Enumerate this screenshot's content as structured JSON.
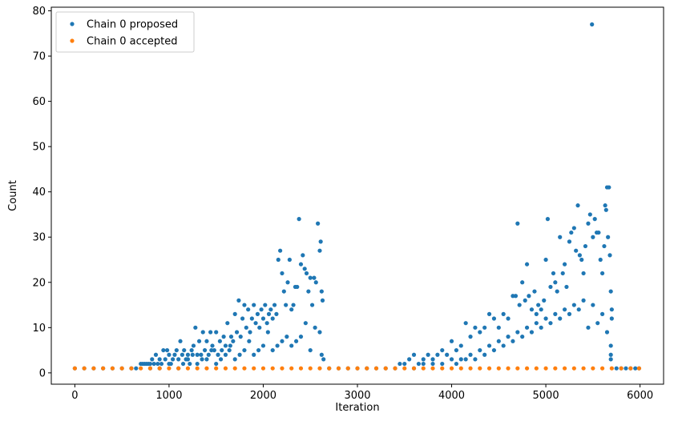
{
  "chart_data": {
    "type": "scatter",
    "title": "",
    "xlabel": "Iteration",
    "ylabel": "Count",
    "xlim": [
      -250,
      6250
    ],
    "ylim": [
      -2.5,
      80.8
    ],
    "xticks": [
      0,
      1000,
      2000,
      3000,
      4000,
      5000,
      6000
    ],
    "yticks": [
      0,
      10,
      20,
      30,
      40,
      50,
      60,
      70,
      80
    ],
    "grid": false,
    "legend_position": "top-left",
    "series": [
      {
        "name": "Chain 0 proposed",
        "color": "#1f77b4",
        "marker": "circle",
        "points": [
          [
            0,
            1
          ],
          [
            100,
            1
          ],
          [
            200,
            1
          ],
          [
            300,
            1
          ],
          [
            400,
            1
          ],
          [
            500,
            1
          ],
          [
            600,
            1
          ],
          [
            650,
            1
          ],
          [
            700,
            2
          ],
          [
            720,
            2
          ],
          [
            740,
            2
          ],
          [
            760,
            2
          ],
          [
            780,
            2
          ],
          [
            800,
            2
          ],
          [
            820,
            3
          ],
          [
            840,
            2
          ],
          [
            860,
            4
          ],
          [
            880,
            2
          ],
          [
            900,
            3
          ],
          [
            920,
            2
          ],
          [
            940,
            5
          ],
          [
            960,
            3
          ],
          [
            980,
            5
          ],
          [
            1000,
            4
          ],
          [
            1020,
            2
          ],
          [
            1040,
            3
          ],
          [
            1060,
            4
          ],
          [
            1080,
            5
          ],
          [
            1100,
            3
          ],
          [
            1120,
            7
          ],
          [
            1140,
            4
          ],
          [
            1160,
            5
          ],
          [
            1180,
            3
          ],
          [
            1200,
            4
          ],
          [
            1220,
            2
          ],
          [
            1240,
            5
          ],
          [
            1260,
            6
          ],
          [
            1280,
            10
          ],
          [
            1300,
            4
          ],
          [
            1320,
            7
          ],
          [
            1340,
            4
          ],
          [
            1360,
            9
          ],
          [
            1380,
            5
          ],
          [
            1400,
            7
          ],
          [
            1420,
            4
          ],
          [
            1440,
            9
          ],
          [
            1460,
            6
          ],
          [
            1480,
            5
          ],
          [
            1500,
            9
          ],
          [
            1520,
            4
          ],
          [
            1540,
            7
          ],
          [
            1560,
            5
          ],
          [
            1580,
            8
          ],
          [
            1600,
            6
          ],
          [
            1620,
            11
          ],
          [
            1640,
            5
          ],
          [
            1660,
            8
          ],
          [
            1680,
            7
          ],
          [
            1700,
            13
          ],
          [
            1720,
            9
          ],
          [
            1740,
            16
          ],
          [
            1760,
            8
          ],
          [
            1780,
            12
          ],
          [
            1800,
            15
          ],
          [
            1820,
            10
          ],
          [
            1840,
            14
          ],
          [
            1860,
            9
          ],
          [
            1880,
            12
          ],
          [
            1900,
            15
          ],
          [
            1920,
            11
          ],
          [
            1940,
            13
          ],
          [
            1960,
            10
          ],
          [
            1980,
            14
          ],
          [
            2000,
            12
          ],
          [
            2020,
            15
          ],
          [
            2040,
            11
          ],
          [
            2060,
            13
          ],
          [
            2080,
            14
          ],
          [
            2100,
            12
          ],
          [
            2120,
            15
          ],
          [
            2140,
            13
          ],
          [
            2160,
            25
          ],
          [
            2180,
            27
          ],
          [
            2200,
            22
          ],
          [
            2220,
            18
          ],
          [
            2240,
            15
          ],
          [
            2260,
            20
          ],
          [
            2280,
            25
          ],
          [
            2300,
            14
          ],
          [
            2320,
            15
          ],
          [
            2340,
            19
          ],
          [
            2360,
            19
          ],
          [
            2380,
            34
          ],
          [
            2400,
            24
          ],
          [
            2420,
            26
          ],
          [
            2440,
            23
          ],
          [
            2460,
            22
          ],
          [
            2480,
            18
          ],
          [
            2500,
            21
          ],
          [
            2520,
            15
          ],
          [
            2540,
            21
          ],
          [
            2560,
            20
          ],
          [
            2580,
            33
          ],
          [
            2600,
            27
          ],
          [
            2610,
            29
          ],
          [
            2620,
            18
          ],
          [
            2630,
            16
          ],
          [
            2640,
            3
          ],
          [
            800,
            1
          ],
          [
            1000,
            2
          ],
          [
            1200,
            3
          ],
          [
            1400,
            3
          ],
          [
            1600,
            4
          ],
          [
            1800,
            5
          ],
          [
            2000,
            6
          ],
          [
            2200,
            7
          ],
          [
            2400,
            8
          ],
          [
            2600,
            9
          ],
          [
            1100,
            1
          ],
          [
            1300,
            2
          ],
          [
            1500,
            2
          ],
          [
            1700,
            3
          ],
          [
            1900,
            4
          ],
          [
            2100,
            5
          ],
          [
            2300,
            6
          ],
          [
            2500,
            5
          ],
          [
            2620,
            4
          ],
          [
            900,
            1
          ],
          [
            1150,
            2
          ],
          [
            1350,
            3
          ],
          [
            1550,
            3
          ],
          [
            1750,
            4
          ],
          [
            1950,
            5
          ],
          [
            2150,
            6
          ],
          [
            2350,
            7
          ],
          [
            2550,
            10
          ],
          [
            2450,
            11
          ],
          [
            2250,
            8
          ],
          [
            2050,
            9
          ],
          [
            1850,
            7
          ],
          [
            1650,
            6
          ],
          [
            1450,
            5
          ],
          [
            1250,
            4
          ],
          [
            2700,
            1
          ],
          [
            2800,
            1
          ],
          [
            2900,
            1
          ],
          [
            3000,
            1
          ],
          [
            3100,
            1
          ],
          [
            3200,
            1
          ],
          [
            3300,
            1
          ],
          [
            3400,
            1
          ],
          [
            3450,
            2
          ],
          [
            3500,
            2
          ],
          [
            3550,
            3
          ],
          [
            3600,
            4
          ],
          [
            3650,
            2
          ],
          [
            3700,
            3
          ],
          [
            3750,
            4
          ],
          [
            3800,
            3
          ],
          [
            3850,
            4
          ],
          [
            3900,
            5
          ],
          [
            3950,
            4
          ],
          [
            4000,
            7
          ],
          [
            4050,
            5
          ],
          [
            4100,
            6
          ],
          [
            4150,
            11
          ],
          [
            4200,
            8
          ],
          [
            4250,
            10
          ],
          [
            4300,
            9
          ],
          [
            4350,
            10
          ],
          [
            4400,
            13
          ],
          [
            4450,
            12
          ],
          [
            4500,
            10
          ],
          [
            4550,
            13
          ],
          [
            4600,
            12
          ],
          [
            4650,
            17
          ],
          [
            4680,
            17
          ],
          [
            4700,
            33
          ],
          [
            4720,
            15
          ],
          [
            4750,
            20
          ],
          [
            4780,
            16
          ],
          [
            4800,
            24
          ],
          [
            4820,
            17
          ],
          [
            4850,
            14
          ],
          [
            4880,
            18
          ],
          [
            4900,
            13
          ],
          [
            4920,
            15
          ],
          [
            4950,
            14
          ],
          [
            4980,
            16
          ],
          [
            5000,
            25
          ],
          [
            5020,
            34
          ],
          [
            5050,
            19
          ],
          [
            5080,
            22
          ],
          [
            5100,
            20
          ],
          [
            5120,
            18
          ],
          [
            5150,
            30
          ],
          [
            5180,
            22
          ],
          [
            5200,
            24
          ],
          [
            5220,
            19
          ],
          [
            5250,
            29
          ],
          [
            5270,
            31
          ],
          [
            5300,
            32
          ],
          [
            5320,
            27
          ],
          [
            5340,
            37
          ],
          [
            5360,
            26
          ],
          [
            5380,
            25
          ],
          [
            5400,
            22
          ],
          [
            5420,
            28
          ],
          [
            5450,
            33
          ],
          [
            5470,
            35
          ],
          [
            5490,
            77
          ],
          [
            5500,
            30
          ],
          [
            5520,
            34
          ],
          [
            5540,
            31
          ],
          [
            5560,
            31
          ],
          [
            5580,
            25
          ],
          [
            5600,
            22
          ],
          [
            5620,
            28
          ],
          [
            5630,
            37
          ],
          [
            5640,
            36
          ],
          [
            5650,
            41
          ],
          [
            5660,
            30
          ],
          [
            5670,
            41
          ],
          [
            5680,
            26
          ],
          [
            5690,
            18
          ],
          [
            5700,
            14
          ],
          [
            3600,
            1
          ],
          [
            3700,
            2
          ],
          [
            3800,
            2
          ],
          [
            3900,
            2
          ],
          [
            4000,
            3
          ],
          [
            4100,
            3
          ],
          [
            4200,
            4
          ],
          [
            4300,
            5
          ],
          [
            4400,
            6
          ],
          [
            4500,
            7
          ],
          [
            4600,
            8
          ],
          [
            4700,
            9
          ],
          [
            4800,
            10
          ],
          [
            4900,
            11
          ],
          [
            5000,
            12
          ],
          [
            5100,
            13
          ],
          [
            5200,
            14
          ],
          [
            5300,
            15
          ],
          [
            5400,
            16
          ],
          [
            5500,
            15
          ],
          [
            5600,
            13
          ],
          [
            5700,
            12
          ],
          [
            4050,
            2
          ],
          [
            4150,
            3
          ],
          [
            4250,
            3
          ],
          [
            4350,
            4
          ],
          [
            4450,
            5
          ],
          [
            4550,
            6
          ],
          [
            4650,
            7
          ],
          [
            4750,
            8
          ],
          [
            4850,
            9
          ],
          [
            4950,
            10
          ],
          [
            5050,
            11
          ],
          [
            5150,
            12
          ],
          [
            5250,
            13
          ],
          [
            5350,
            14
          ],
          [
            5450,
            10
          ],
          [
            5550,
            11
          ],
          [
            5650,
            9
          ],
          [
            5690,
            6
          ],
          [
            5690,
            4
          ],
          [
            5690,
            3
          ],
          [
            5750,
            1
          ],
          [
            5800,
            1
          ],
          [
            5850,
            1
          ],
          [
            5900,
            1
          ],
          [
            5950,
            1
          ],
          [
            5990,
            1
          ]
        ]
      },
      {
        "name": "Chain 0 accepted",
        "color": "#ff7f0e",
        "marker": "circle",
        "points": [
          [
            0,
            1
          ],
          [
            100,
            1
          ],
          [
            200,
            1
          ],
          [
            300,
            1
          ],
          [
            400,
            1
          ],
          [
            500,
            1
          ],
          [
            600,
            1
          ],
          [
            700,
            1
          ],
          [
            800,
            1
          ],
          [
            900,
            1
          ],
          [
            1000,
            1
          ],
          [
            1100,
            1
          ],
          [
            1200,
            1
          ],
          [
            1300,
            1
          ],
          [
            1400,
            1
          ],
          [
            1500,
            1
          ],
          [
            1600,
            1
          ],
          [
            1700,
            1
          ],
          [
            1800,
            1
          ],
          [
            1900,
            1
          ],
          [
            2000,
            1
          ],
          [
            2100,
            1
          ],
          [
            2200,
            1
          ],
          [
            2300,
            1
          ],
          [
            2400,
            1
          ],
          [
            2500,
            1
          ],
          [
            2600,
            1
          ],
          [
            2700,
            1
          ],
          [
            2800,
            1
          ],
          [
            2900,
            1
          ],
          [
            3000,
            1
          ],
          [
            3100,
            1
          ],
          [
            3200,
            1
          ],
          [
            3300,
            1
          ],
          [
            3400,
            1
          ],
          [
            3500,
            1
          ],
          [
            3600,
            1
          ],
          [
            3700,
            1
          ],
          [
            3800,
            1
          ],
          [
            3900,
            1
          ],
          [
            4000,
            1
          ],
          [
            4100,
            1
          ],
          [
            4200,
            1
          ],
          [
            4300,
            1
          ],
          [
            4400,
            1
          ],
          [
            4500,
            1
          ],
          [
            4600,
            1
          ],
          [
            4700,
            1
          ],
          [
            4800,
            1
          ],
          [
            4900,
            1
          ],
          [
            5000,
            1
          ],
          [
            5100,
            1
          ],
          [
            5200,
            1
          ],
          [
            5300,
            1
          ],
          [
            5400,
            1
          ],
          [
            5500,
            1
          ],
          [
            5600,
            1
          ],
          [
            5700,
            1
          ],
          [
            5800,
            1
          ],
          [
            5900,
            1
          ],
          [
            5990,
            1
          ]
        ]
      }
    ]
  }
}
